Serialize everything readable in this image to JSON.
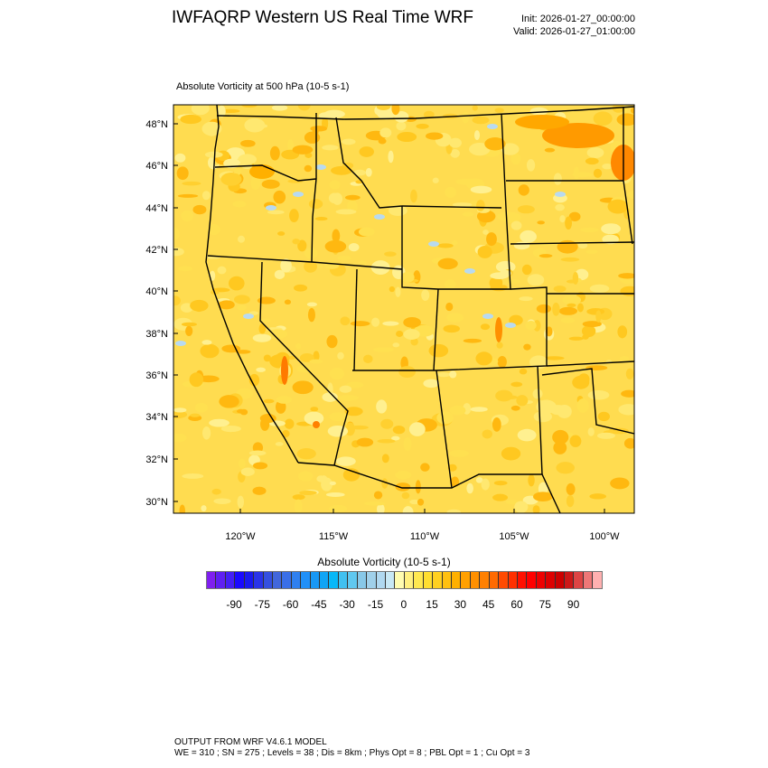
{
  "header": {
    "title": "IWFAQRP Western US Real Time WRF",
    "init": "Init: 2026-01-27_00:00:00",
    "valid": "Valid: 2026-01-27_01:00:00"
  },
  "plot": {
    "subtitle": "Absolute Vorticity at 500 hPa   (10-5 s-1)",
    "lat_ticks": [
      "48°N",
      "46°N",
      "44°N",
      "42°N",
      "40°N",
      "38°N",
      "36°N",
      "34°N",
      "32°N",
      "30°N"
    ],
    "lon_ticks": [
      "120°W",
      "115°W",
      "110°W",
      "105°W",
      "100°W"
    ],
    "field_dominant_color": "#ffdc50"
  },
  "colorbar": {
    "title": "Absolute Vorticity  (10-5 s-1)",
    "labels": [
      "-90",
      "-75",
      "-60",
      "-45",
      "-30",
      "-15",
      "0",
      "15",
      "30",
      "45",
      "60",
      "75",
      "90"
    ],
    "colors": [
      "#7f1fef",
      "#5f1ff2",
      "#441ff5",
      "#1a0aff",
      "#1a1aef",
      "#2a34e8",
      "#3550e0",
      "#4267dc",
      "#3a6fe8",
      "#2f80f0",
      "#2090f8",
      "#1898f5",
      "#10a5f5",
      "#08b8f8",
      "#40c0f0",
      "#60c8f0",
      "#88c8e8",
      "#a0d0ea",
      "#b0d8f0",
      "#c8e8f5",
      "#fffcb0",
      "#fff080",
      "#ffe850",
      "#ffde30",
      "#ffd020",
      "#ffc010",
      "#ffb000",
      "#ffa000",
      "#ff9000",
      "#ff8000",
      "#ff6a00",
      "#ff4a00",
      "#ff3000",
      "#ff1000",
      "#ff0000",
      "#ee0000",
      "#dd0000",
      "#cc0000",
      "#cc1818",
      "#dd4444",
      "#ee7777",
      "#ffb0b0"
    ]
  },
  "footer": {
    "line1": "OUTPUT FROM WRF V4.6.1 MODEL",
    "line2": "WE = 310 ; SN = 275 ; Levels = 38 ; Dis = 8km ; Phys Opt = 8 ; PBL Opt = 1 ; Cu Opt = 3"
  }
}
